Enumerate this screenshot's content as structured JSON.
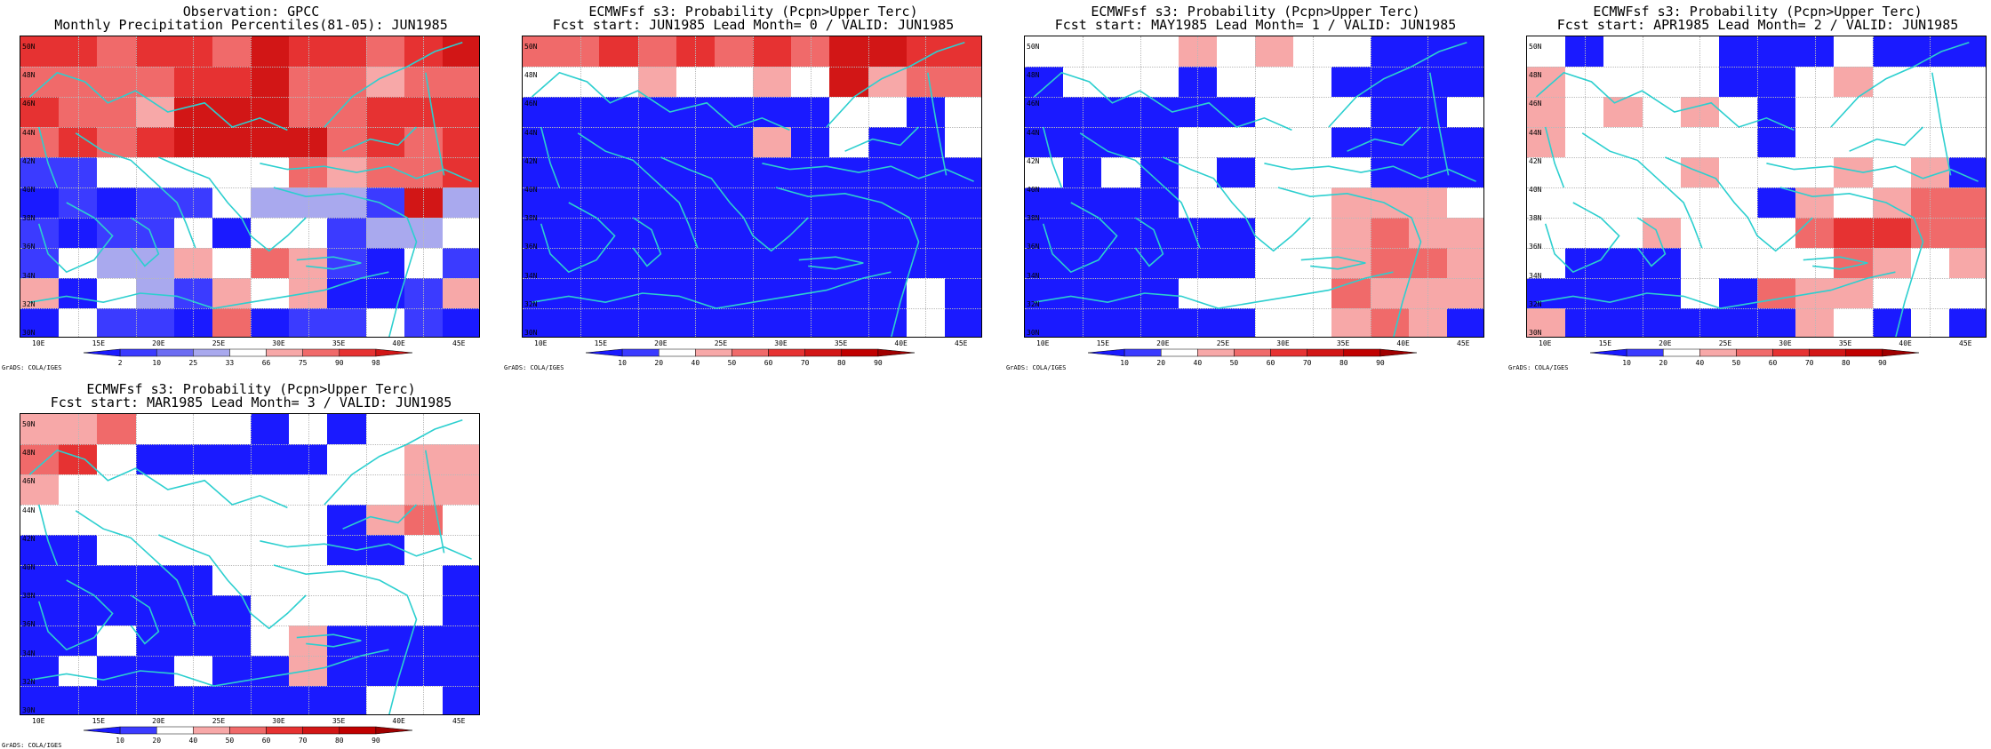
{
  "colors": {
    "map_classes": {
      "dark_blue": "#1a1aff",
      "blue": "#3b3bff",
      "mid_blue": "#6c6cf2",
      "light_blue": "#a9a9ee",
      "pink": "#f7a8a8",
      "light_red": "#f06a6a",
      "red": "#e63232",
      "dark_red": "#d21616",
      "white": "#ffffff"
    },
    "coast": "#2ccfcf"
  },
  "axis": {
    "lon_ticks": [
      "10E",
      "15E",
      "20E",
      "25E",
      "30E",
      "35E",
      "40E",
      "45E"
    ],
    "lat_ticks": [
      "50N",
      "48N",
      "46N",
      "44N",
      "42N",
      "40N",
      "38N",
      "36N",
      "34N",
      "32N",
      "30N"
    ]
  },
  "panels": [
    {
      "id": "obs",
      "title_line1": "Observation: GPCC",
      "title_line2": "Monthly Precipitation Percentiles(81-05): JUN1985",
      "colorbar": {
        "labels": [
          "2",
          "10",
          "25",
          "33",
          "66",
          "75",
          "90",
          "98"
        ],
        "colors": [
          "#1a1aff",
          "#3b3bff",
          "#6c6cf2",
          "#a9a9ee",
          "#ffffff",
          "#f7a8a8",
          "#f06a6a",
          "#e63232",
          "#d21616"
        ]
      },
      "credit": "GrADS: COLA/IGES",
      "grid": [
        "RRLRRLMRRLRM",
        "LLLLRRMLLPLL",
        "RLLPMMMLLRRR",
        "LRLRMMMMLRLR",
        "BBWWWWWLPLLR",
        "DBDBBWAAABMA",
        "BDBBWDWWBAAW",
        "BWAAPWLPBDWB",
        "PDWABPWPDDBP",
        "DWBBDLDBBWBD"
      ]
    },
    {
      "id": "lead0",
      "title_line1": "ECMWFsf s3: Probability (Pcpn>Upper Terc)",
      "title_line2": "Fcst start: JUN1985  Lead Month= 0 / VALID: JUN1985",
      "colorbar": {
        "labels": [
          "10",
          "20",
          "40",
          "50",
          "60",
          "70",
          "80",
          "90"
        ],
        "colors": [
          "#1a1aff",
          "#3b3bff",
          "#ffffff",
          "#f7a8a8",
          "#f06a6a",
          "#e63232",
          "#d21616",
          "#c00000",
          "#a00000"
        ]
      },
      "credit": "GrADS: COLA/IGES",
      "grid": [
        "LLRLRLRLMMRR",
        "WWWPWWPWMPLL",
        "DDDDDDDDWWDW",
        "DDDDDDPDWDDW",
        "DDDDDDDDDDDD",
        "DDDDDDDDDDDD",
        "DDDDDDDDDDDD",
        "DDDDDDDDDDDD",
        "DDDDDDDDDDWD",
        "DDDDDDDDDDWD"
      ]
    },
    {
      "id": "lead1",
      "title_line1": "ECMWFsf s3: Probability (Pcpn>Upper Terc)",
      "title_line2": "Fcst start: MAY1985  Lead Month= 1 / VALID: JUN1985",
      "colorbar": {
        "labels": [
          "10",
          "20",
          "40",
          "50",
          "60",
          "70",
          "80",
          "90"
        ],
        "colors": [
          "#1a1aff",
          "#3b3bff",
          "#ffffff",
          "#f7a8a8",
          "#f06a6a",
          "#e63232",
          "#d21616",
          "#c00000",
          "#a00000"
        ]
      },
      "credit": "GrADS: COLA/IGES",
      "grid": [
        "WWWWPWPWWDDD",
        "DWWWDWWWDDDD",
        "DDDDDDWWWDDW",
        "DDDDWWWWDDDD",
        "WDWDWDWWWDDD",
        "DDDDWWWWPPPW",
        "DDDDDDWWPLPP",
        "DDDDDDWWPLLP",
        "DDDDWWWWLPPP",
        "DDDDDDWWPLPD"
      ]
    },
    {
      "id": "lead2",
      "title_line1": "ECMWFsf s3: Probability (Pcpn>Upper Terc)",
      "title_line2": "Fcst start: APR1985  Lead Month= 2 / VALID: JUN1985",
      "colorbar": {
        "labels": [
          "10",
          "20",
          "40",
          "50",
          "60",
          "70",
          "80",
          "90"
        ],
        "colors": [
          "#1a1aff",
          "#3b3bff",
          "#ffffff",
          "#f7a8a8",
          "#f06a6a",
          "#e63232",
          "#d21616",
          "#c00000",
          "#a00000"
        ]
      },
      "credit": "GrADS: COLA/IGES",
      "grid": [
        "WDWWWDDDWDDD",
        "PWWWWDDWPWWW",
        "PWPWPWDWWWWW",
        "PWWWWWDWWWWW",
        "WWWWPWWWPWPD",
        "WWWWWWDPWPLL",
        "WWWPWWWLRRLL",
        "WDDDWWWWLPWP",
        "DDDDWDLPPWWW",
        "PDDDDDDPWDWD"
      ]
    },
    {
      "id": "lead3",
      "title_line1": "ECMWFsf s3: Probability (Pcpn>Upper Terc)",
      "title_line2": "Fcst start: MAR1985  Lead Month= 3 / VALID: JUN1985",
      "colorbar": {
        "labels": [
          "10",
          "20",
          "40",
          "50",
          "60",
          "70",
          "80",
          "90"
        ],
        "colors": [
          "#1a1aff",
          "#3b3bff",
          "#ffffff",
          "#f7a8a8",
          "#f06a6a",
          "#e63232",
          "#d21616",
          "#c00000",
          "#a00000"
        ]
      },
      "credit": "GrADS: COLA/IGES",
      "grid": [
        "PPLWWWDWDWWW",
        "LRWDDDDDWWPP",
        "PWWWWWWWWWPP",
        "WWWWWWWWDPLW",
        "DDWWWWWWDDWW",
        "DDDDDWWWWWWD",
        "DDDDDDWWWWWD",
        "DDWDDDWPDDDD",
        "DWDDWDDPDDDD",
        "DDDDDDDDDWWD"
      ]
    }
  ]
}
